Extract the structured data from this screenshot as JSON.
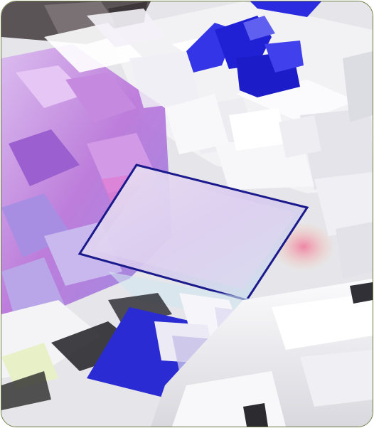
{
  "image": {
    "kind": "3d-isometric-render",
    "palette": {
      "background": "#e9e9ec",
      "white_blocks": "#f4f4f6",
      "purple_glass": "#b06ad6",
      "blue_accent": "#2323d8",
      "outline_blue": "#1a1a8c",
      "frame_border": "#6b7a3e"
    }
  }
}
